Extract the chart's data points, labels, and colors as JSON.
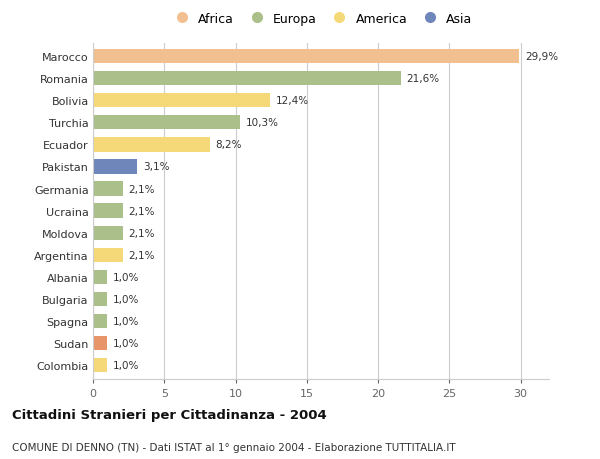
{
  "countries": [
    "Marocco",
    "Romania",
    "Bolivia",
    "Turchia",
    "Ecuador",
    "Pakistan",
    "Germania",
    "Ucraina",
    "Moldova",
    "Argentina",
    "Albania",
    "Bulgaria",
    "Spagna",
    "Sudan",
    "Colombia"
  ],
  "values": [
    29.9,
    21.6,
    12.4,
    10.3,
    8.2,
    3.1,
    2.1,
    2.1,
    2.1,
    2.1,
    1.0,
    1.0,
    1.0,
    1.0,
    1.0
  ],
  "labels": [
    "29,9%",
    "21,6%",
    "12,4%",
    "10,3%",
    "8,2%",
    "3,1%",
    "2,1%",
    "2,1%",
    "2,1%",
    "2,1%",
    "1,0%",
    "1,0%",
    "1,0%",
    "1,0%",
    "1,0%"
  ],
  "colors": [
    "#F2C090",
    "#AABF8A",
    "#F5D978",
    "#AABF8A",
    "#F5D978",
    "#6E86BA",
    "#AABF8A",
    "#AABF8A",
    "#AABF8A",
    "#F5D978",
    "#AABF8A",
    "#AABF8A",
    "#AABF8A",
    "#E8956A",
    "#F5D978"
  ],
  "legend_labels": [
    "Africa",
    "Europa",
    "America",
    "Asia"
  ],
  "legend_colors": [
    "#F2C090",
    "#AABF8A",
    "#F5D978",
    "#6E86BA"
  ],
  "title": "Cittadini Stranieri per Cittadinanza - 2004",
  "subtitle": "COMUNE DI DENNO (TN) - Dati ISTAT al 1° gennaio 2004 - Elaborazione TUTTITALIA.IT",
  "xlim": [
    0,
    32
  ],
  "xticks": [
    0,
    5,
    10,
    15,
    20,
    25,
    30
  ],
  "bg_color": "#FFFFFF",
  "grid_color": "#CCCCCC"
}
